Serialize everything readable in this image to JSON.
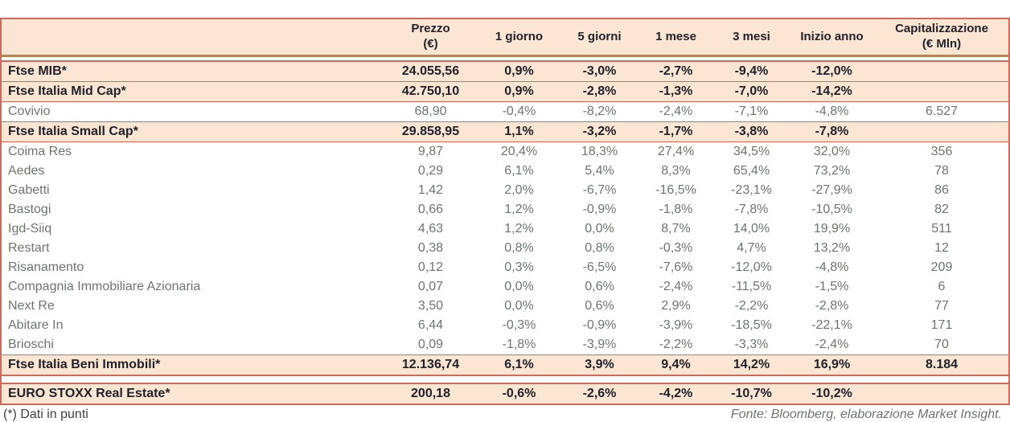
{
  "colors": {
    "row_highlight": "#fbe5d3",
    "rule_red": "#d2685a",
    "rule_tan": "#b2855a",
    "text_dark": "#21212b",
    "text_gray": "#6d746e"
  },
  "chart_data": {
    "type": "table",
    "title": "",
    "columns": [
      {
        "key": "name",
        "label": ""
      },
      {
        "key": "prezzo",
        "label": "Prezzo\n(€)"
      },
      {
        "key": "d1",
        "label": "1 giorno"
      },
      {
        "key": "d5",
        "label": "5 giorni"
      },
      {
        "key": "m1",
        "label": "1 mese"
      },
      {
        "key": "m3",
        "label": "3 mesi"
      },
      {
        "key": "ytd",
        "label": "Inizio anno"
      },
      {
        "key": "cap",
        "label": "Capitalizzazione\n(€ Mln)"
      }
    ],
    "rows": [
      {
        "label": "Ftse MIB*",
        "kind": "index",
        "values": [
          "24.055,56",
          "0,9%",
          "-3,0%",
          "-2,7%",
          "-9,4%",
          "-12,0%",
          ""
        ]
      },
      {
        "label": "Ftse Italia Mid Cap*",
        "kind": "index",
        "values": [
          "42.750,10",
          "0,9%",
          "-2,8%",
          "-1,3%",
          "-7,0%",
          "-14,2%",
          ""
        ]
      },
      {
        "label": "Covivio",
        "kind": "company",
        "values": [
          "68,90",
          "-0,4%",
          "-8,2%",
          "-2,4%",
          "-7,1%",
          "-4,8%",
          "6.527"
        ]
      },
      {
        "label": "Ftse Italia Small Cap*",
        "kind": "index",
        "values": [
          "29.858,95",
          "1,1%",
          "-3,2%",
          "-1,7%",
          "-3,8%",
          "-7,8%",
          ""
        ]
      },
      {
        "label": "Coima Res",
        "kind": "company",
        "values": [
          "9,87",
          "20,4%",
          "18,3%",
          "27,4%",
          "34,5%",
          "32,0%",
          "356"
        ]
      },
      {
        "label": "Aedes",
        "kind": "company",
        "values": [
          "0,29",
          "6,1%",
          "5,4%",
          "8,3%",
          "65,4%",
          "73,2%",
          "78"
        ]
      },
      {
        "label": "Gabetti",
        "kind": "company",
        "values": [
          "1,42",
          "2,0%",
          "-6,7%",
          "-16,5%",
          "-23,1%",
          "-27,9%",
          "86"
        ]
      },
      {
        "label": "Bastogi",
        "kind": "company",
        "values": [
          "0,66",
          "1,2%",
          "-0,9%",
          "-1,8%",
          "-7,8%",
          "-10,5%",
          "82"
        ]
      },
      {
        "label": "Igd-Siiq",
        "kind": "company",
        "values": [
          "4,63",
          "1,2%",
          "0,0%",
          "8,7%",
          "14,0%",
          "19,9%",
          "511"
        ]
      },
      {
        "label": "Restart",
        "kind": "company",
        "values": [
          "0,38",
          "0,8%",
          "0,8%",
          "-0,3%",
          "4,7%",
          "13,2%",
          "12"
        ]
      },
      {
        "label": "Risanamento",
        "kind": "company",
        "values": [
          "0,12",
          "0,3%",
          "-6,5%",
          "-7,6%",
          "-12,0%",
          "-4,8%",
          "209"
        ]
      },
      {
        "label": "Compagnia Immobiliare Azionaria",
        "kind": "company",
        "values": [
          "0,07",
          "0,0%",
          "0,6%",
          "-2,4%",
          "-11,5%",
          "-1,5%",
          "6"
        ]
      },
      {
        "label": "Next Re",
        "kind": "company",
        "values": [
          "3,50",
          "0,0%",
          "0,6%",
          "2,9%",
          "-2,2%",
          "-2,8%",
          "77"
        ]
      },
      {
        "label": "Abitare In",
        "kind": "company",
        "values": [
          "6,44",
          "-0,3%",
          "-0,9%",
          "-3,9%",
          "-18,5%",
          "-22,1%",
          "171"
        ]
      },
      {
        "label": "Brioschi",
        "kind": "company",
        "values": [
          "0,09",
          "-1,8%",
          "-3,9%",
          "-2,2%",
          "-3,3%",
          "-2,4%",
          "70"
        ]
      },
      {
        "label": "Ftse Italia Beni Immobili*",
        "kind": "index",
        "values": [
          "12.136,74",
          "6,1%",
          "3,9%",
          "9,4%",
          "14,2%",
          "16,9%",
          "8.184"
        ]
      },
      {
        "label": "EURO STOXX Real Estate*",
        "kind": "index",
        "gap_before": true,
        "values": [
          "200,18",
          "-0,6%",
          "-2,6%",
          "-4,2%",
          "-10,7%",
          "-10,2%",
          ""
        ]
      }
    ]
  },
  "footer": {
    "note": "(*) Dati in punti",
    "source": "Fonte: Bloomberg, elaborazione Market Insight."
  }
}
